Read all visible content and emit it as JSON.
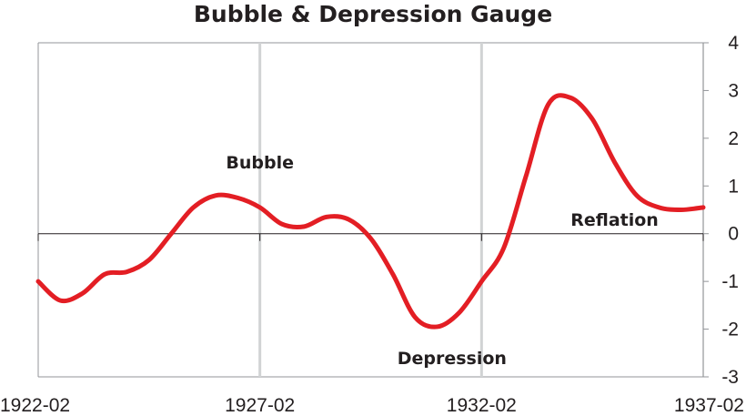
{
  "chart_data": {
    "type": "line",
    "title": "Bubble & Depression Gauge",
    "xlabel": "",
    "ylabel": "",
    "x_ticks": [
      "1922-02",
      "1927-02",
      "1932-02",
      "1937-02"
    ],
    "y_ticks": [
      "4",
      "3",
      "2",
      "1",
      "0",
      "-1",
      "-2",
      "-3"
    ],
    "xlim": [
      "1922-02",
      "1937-02"
    ],
    "ylim": [
      -3,
      4
    ],
    "grid": "vertical gray lines at 1927 and 1932",
    "legend": "none",
    "annotations": [
      {
        "text": "Bubble",
        "x": "1927-02",
        "y": 1.5
      },
      {
        "text": "Depression",
        "x": "1931-06",
        "y": -2.6
      },
      {
        "text": "Reflation",
        "x": "1935-02",
        "y": 0.3
      }
    ],
    "series": [
      {
        "color": "#e31e24",
        "x": [
          "1922-02",
          "1922-08",
          "1923-02",
          "1923-08",
          "1924-02",
          "1924-08",
          "1925-02",
          "1925-08",
          "1926-02",
          "1926-08",
          "1927-02",
          "1927-08",
          "1928-02",
          "1928-08",
          "1929-02",
          "1929-08",
          "1930-02",
          "1930-08",
          "1931-02",
          "1931-08",
          "1932-02",
          "1932-08",
          "1933-02",
          "1933-08",
          "1934-02",
          "1934-08",
          "1935-02",
          "1935-08",
          "1936-02",
          "1936-08",
          "1937-02"
        ],
        "y": [
          -1.0,
          -1.4,
          -1.25,
          -0.85,
          -0.8,
          -0.55,
          0.0,
          0.55,
          0.8,
          0.75,
          0.55,
          0.2,
          0.15,
          0.35,
          0.3,
          -0.1,
          -0.85,
          -1.75,
          -1.95,
          -1.65,
          -1.0,
          -0.3,
          1.2,
          2.7,
          2.85,
          2.4,
          1.5,
          0.8,
          0.55,
          0.5,
          0.55
        ]
      }
    ]
  }
}
